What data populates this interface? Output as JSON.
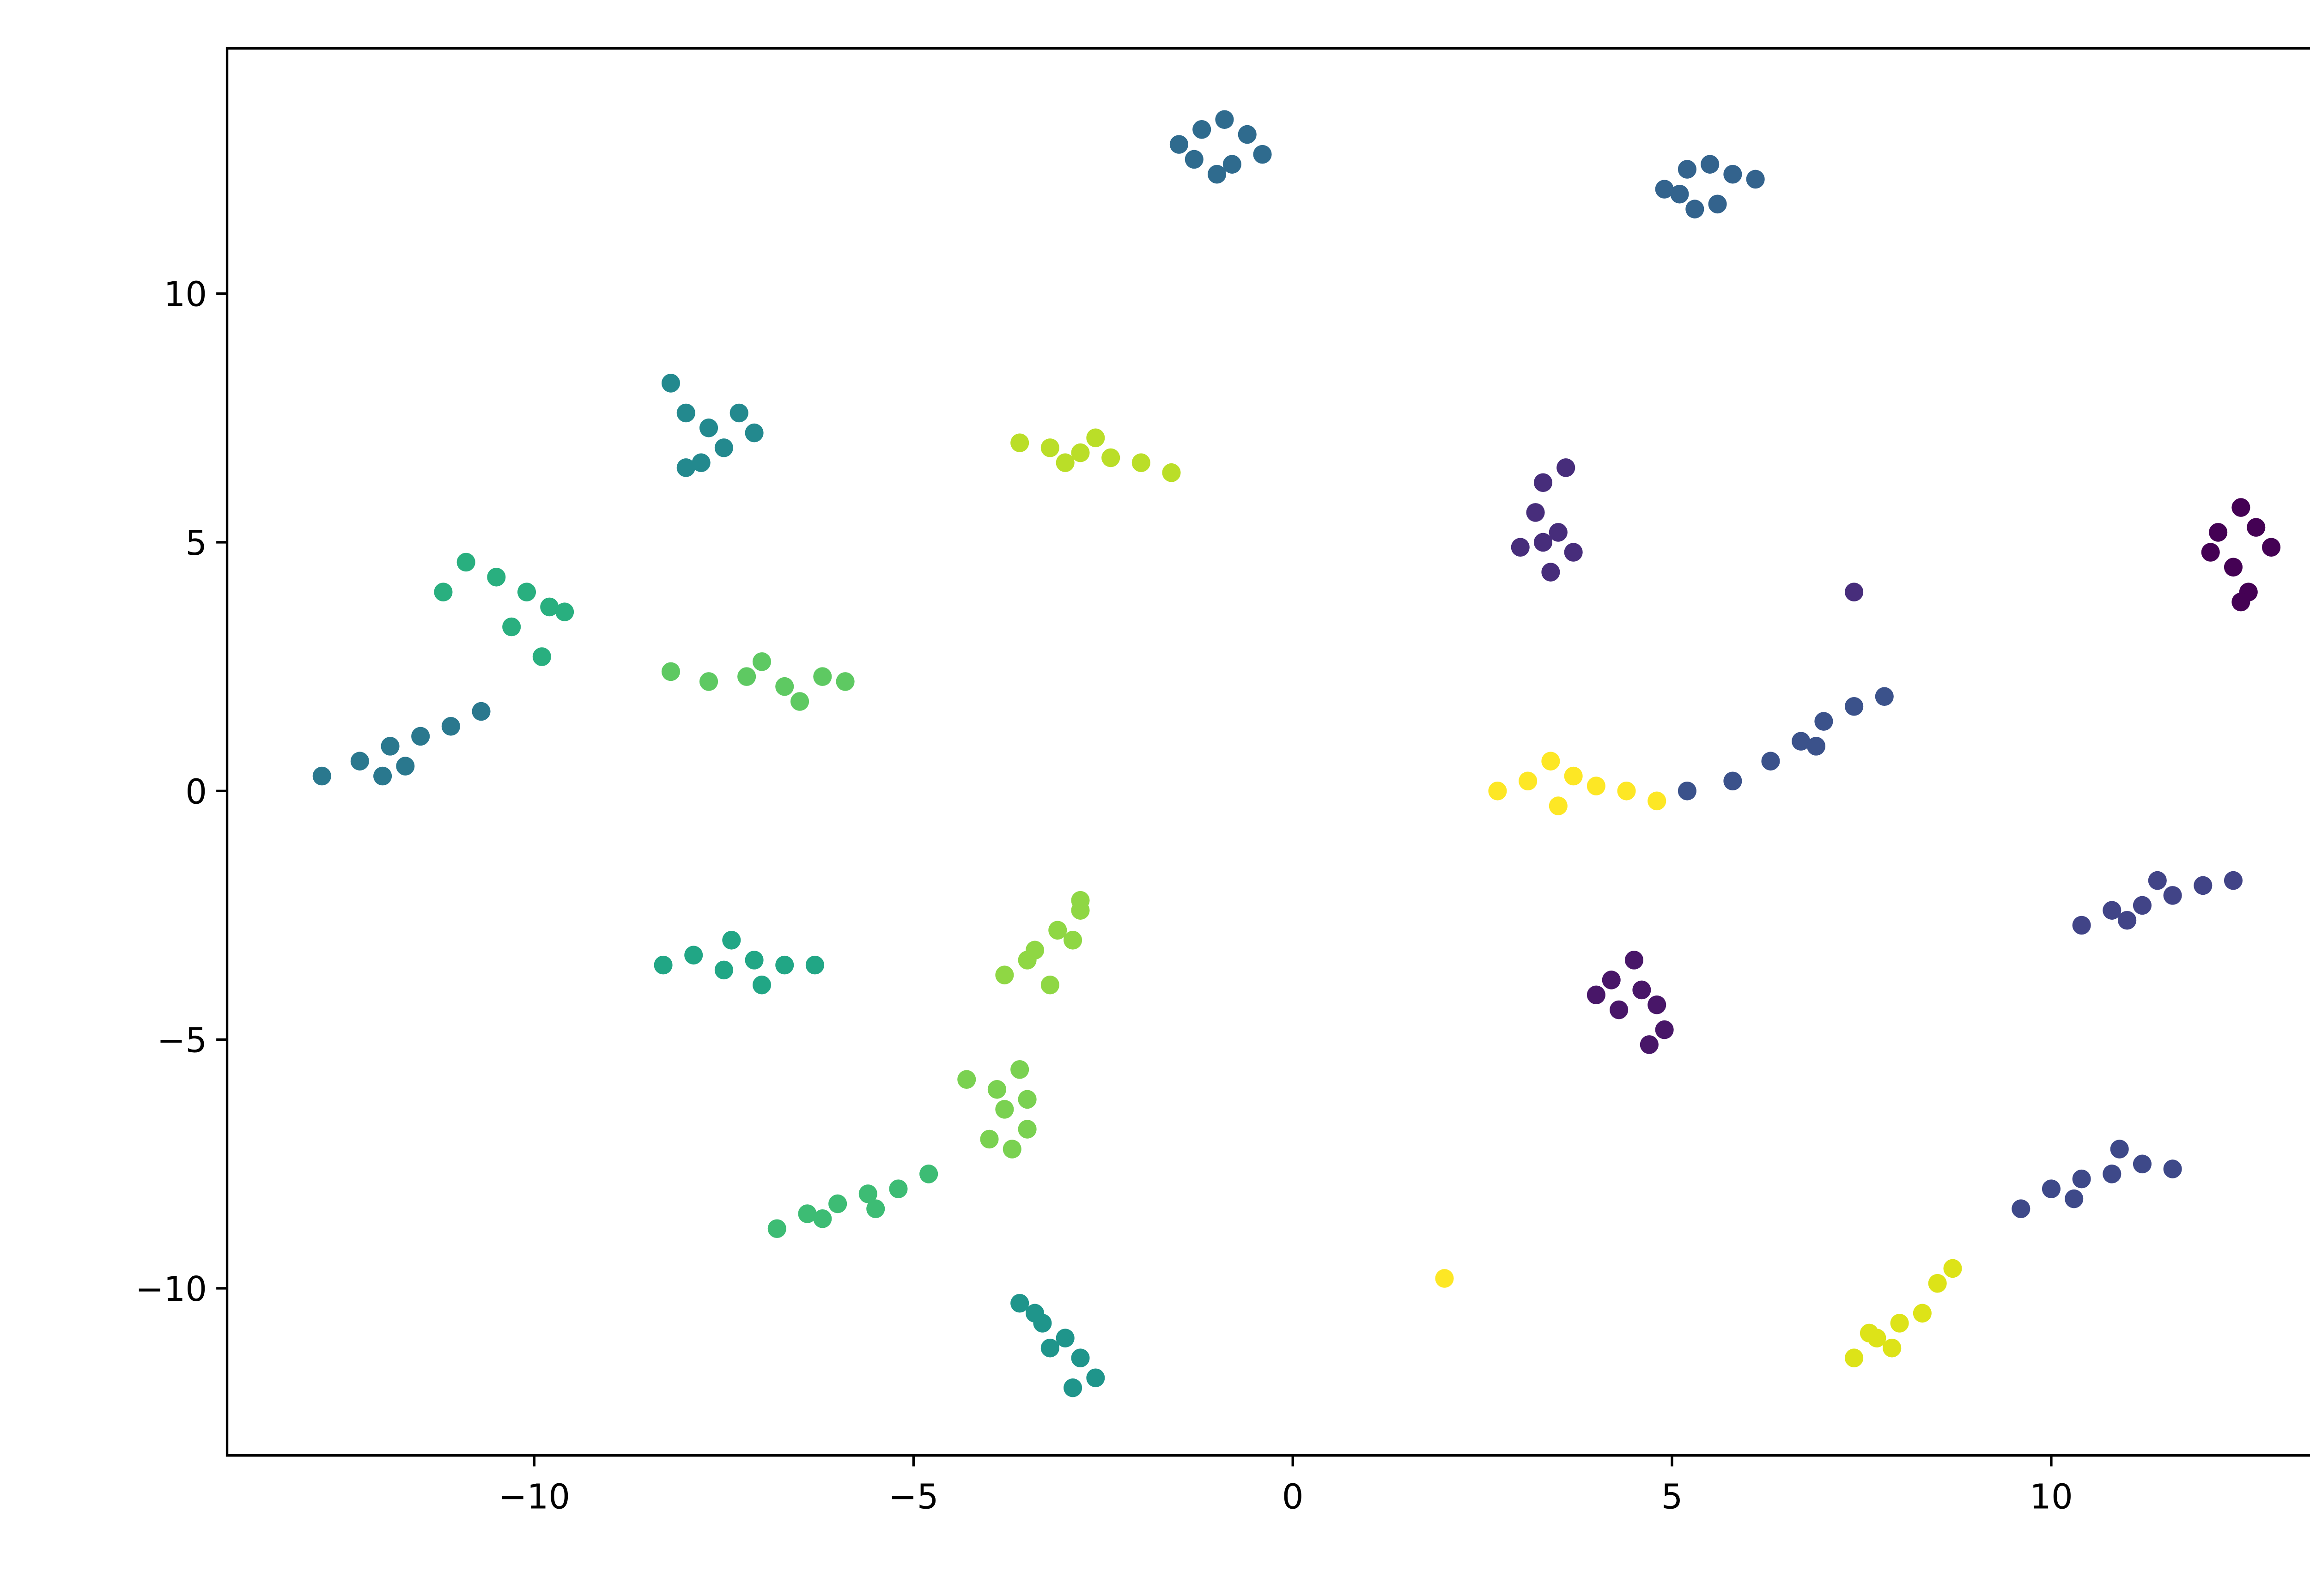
{
  "chart_data": {
    "type": "scatter",
    "xlim": [
      -14.05,
      14.26
    ],
    "ylim": [
      -13.36,
      14.93
    ],
    "xticks": [
      {
        "value": -10,
        "label": "−10"
      },
      {
        "value": -5,
        "label": "−5"
      },
      0,
      5,
      10
    ],
    "yticks": [
      {
        "value": -10,
        "label": "−10"
      },
      {
        "value": -5,
        "label": "−5"
      },
      0,
      5,
      10
    ],
    "grid": false,
    "series": [
      {
        "color": "#2f6b8e",
        "x": [
          -1.5,
          -1.2,
          -0.9,
          -0.6,
          -0.4,
          -1.0,
          -0.8,
          -1.3
        ],
        "y": [
          13.0,
          13.3,
          13.5,
          13.2,
          12.8,
          12.4,
          12.6,
          12.7
        ]
      },
      {
        "color": "#33638d",
        "x": [
          4.9,
          5.2,
          5.5,
          5.8,
          6.1,
          5.3,
          5.6,
          5.1
        ],
        "y": [
          12.1,
          12.5,
          12.6,
          12.4,
          12.3,
          11.7,
          11.8,
          12.0
        ]
      },
      {
        "color": "#23898e",
        "x": [
          -8.2,
          -8.0,
          -7.7,
          -7.3,
          -7.1,
          -7.8,
          -7.5,
          -8.0
        ],
        "y": [
          8.2,
          7.6,
          7.3,
          7.6,
          7.2,
          6.6,
          6.9,
          6.5
        ]
      },
      {
        "color": "#bade28",
        "x": [
          -3.6,
          -3.2,
          -2.8,
          -2.4,
          -2.0,
          -1.6,
          -3.0,
          -2.6
        ],
        "y": [
          7.0,
          6.9,
          6.8,
          6.7,
          6.6,
          6.4,
          6.6,
          7.1
        ]
      },
      {
        "color": "#472d7b",
        "x": [
          3.3,
          3.6,
          3.2,
          3.5,
          3.0,
          3.7,
          3.4,
          3.3,
          7.4
        ],
        "y": [
          6.2,
          6.5,
          5.6,
          5.2,
          4.9,
          4.8,
          4.4,
          5.0,
          4.0
        ]
      },
      {
        "color": "#440154",
        "x": [
          12.2,
          12.5,
          12.7,
          12.9,
          12.4,
          12.6,
          12.1,
          12.5
        ],
        "y": [
          5.2,
          5.7,
          5.3,
          4.9,
          4.5,
          4.0,
          4.8,
          3.8
        ]
      },
      {
        "color": "#29af7f",
        "x": [
          -11.2,
          -10.9,
          -10.5,
          -10.1,
          -9.8,
          -9.6,
          -10.3,
          -9.9
        ],
        "y": [
          4.0,
          4.6,
          4.3,
          4.0,
          3.7,
          3.6,
          3.3,
          2.7
        ]
      },
      {
        "color": "#5ec962",
        "x": [
          -8.2,
          -7.7,
          -7.2,
          -6.7,
          -6.2,
          -5.9,
          -7.0,
          -6.5
        ],
        "y": [
          2.4,
          2.2,
          2.3,
          2.1,
          2.3,
          2.2,
          2.6,
          1.8
        ]
      },
      {
        "color": "#2a788e",
        "x": [
          -12.8,
          -12.3,
          -11.9,
          -11.5,
          -11.1,
          -10.7,
          -11.7,
          -12.0
        ],
        "y": [
          0.3,
          0.6,
          0.9,
          1.1,
          1.3,
          1.6,
          0.5,
          0.3
        ]
      },
      {
        "color": "#fde725",
        "x": [
          2.7,
          3.1,
          3.4,
          3.7,
          4.0,
          4.4,
          4.8,
          3.5,
          2.0
        ],
        "y": [
          0.0,
          0.2,
          0.6,
          0.3,
          0.1,
          0.0,
          -0.2,
          -0.3,
          -9.8
        ]
      },
      {
        "color": "#3b528b",
        "x": [
          5.2,
          5.8,
          6.3,
          6.7,
          7.0,
          7.4,
          7.8,
          6.9
        ],
        "y": [
          0.0,
          0.2,
          0.6,
          1.0,
          1.4,
          1.7,
          1.9,
          0.9
        ]
      },
      {
        "color": "#414487",
        "x": [
          10.4,
          10.8,
          11.2,
          11.6,
          12.0,
          12.4,
          11.0,
          11.4
        ],
        "y": [
          -2.7,
          -2.4,
          -2.3,
          -2.1,
          -1.9,
          -1.8,
          -2.6,
          -1.8
        ]
      },
      {
        "color": "#21a685",
        "x": [
          -8.3,
          -7.9,
          -7.5,
          -7.1,
          -6.7,
          -6.3,
          -7.4,
          -7.0
        ],
        "y": [
          -3.5,
          -3.3,
          -3.6,
          -3.4,
          -3.5,
          -3.5,
          -3.0,
          -3.9
        ]
      },
      {
        "color": "#8fd744",
        "x": [
          -3.8,
          -3.5,
          -3.2,
          -2.9,
          -2.8,
          -3.4,
          -3.1,
          -2.8
        ],
        "y": [
          -3.7,
          -3.4,
          -3.9,
          -3.0,
          -2.4,
          -3.2,
          -2.8,
          -2.2
        ]
      },
      {
        "color": "#481668",
        "x": [
          4.0,
          4.3,
          4.6,
          4.8,
          4.5,
          4.9,
          4.2,
          4.7
        ],
        "y": [
          -4.1,
          -4.4,
          -4.0,
          -4.3,
          -3.4,
          -4.8,
          -3.8,
          -5.1
        ]
      },
      {
        "color": "#7ad151",
        "x": [
          -4.3,
          -3.9,
          -3.6,
          -3.8,
          -3.5,
          -4.0,
          -3.7,
          -3.5
        ],
        "y": [
          -5.8,
          -6.0,
          -5.6,
          -6.4,
          -6.8,
          -7.0,
          -7.2,
          -6.2
        ]
      },
      {
        "color": "#3dbc74",
        "x": [
          -6.8,
          -6.4,
          -6.0,
          -5.6,
          -5.2,
          -4.8,
          -6.2,
          -5.5
        ],
        "y": [
          -8.8,
          -8.5,
          -8.3,
          -8.1,
          -8.0,
          -7.7,
          -8.6,
          -8.4
        ]
      },
      {
        "color": "#3e4989",
        "x": [
          9.6,
          10.0,
          10.4,
          10.8,
          11.2,
          11.6,
          10.9,
          10.3
        ],
        "y": [
          -8.4,
          -8.0,
          -7.8,
          -7.7,
          -7.5,
          -7.6,
          -7.2,
          -8.2
        ]
      },
      {
        "color": "#dde318",
        "x": [
          7.4,
          7.7,
          8.0,
          8.3,
          7.9,
          7.6,
          8.5,
          8.7
        ],
        "y": [
          -11.4,
          -11.0,
          -10.7,
          -10.5,
          -11.2,
          -10.9,
          -9.9,
          -9.6
        ]
      },
      {
        "color": "#1f958b",
        "x": [
          -3.6,
          -3.3,
          -3.0,
          -2.8,
          -2.6,
          -3.2,
          -2.9,
          -3.4
        ],
        "y": [
          -10.3,
          -10.7,
          -11.0,
          -11.4,
          -11.8,
          -11.2,
          -12.0,
          -10.5
        ]
      }
    ]
  }
}
